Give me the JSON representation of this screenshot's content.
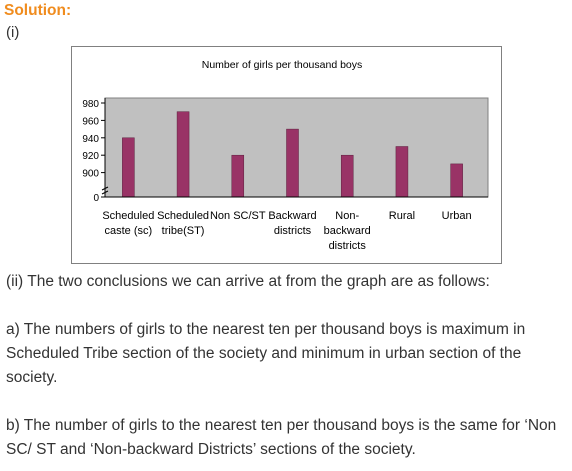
{
  "header": {
    "title": "Solution:"
  },
  "part_one": {
    "label": "(i)"
  },
  "chart_data": {
    "type": "bar",
    "title": "Number of girls per thousand boys",
    "categories": [
      [
        "Scheduled",
        "caste (sc)"
      ],
      [
        "Scheduled",
        "tribe(ST)"
      ],
      [
        "Non SC/ST"
      ],
      [
        "Backward",
        "districts"
      ],
      [
        "Non-",
        "backward",
        "districts"
      ],
      [
        "Rural"
      ],
      [
        "Urban"
      ]
    ],
    "values": [
      940,
      970,
      920,
      950,
      920,
      930,
      910
    ],
    "yticks": [
      "980",
      "960",
      "940",
      "920",
      "900",
      "0"
    ],
    "ylim": [
      880,
      980
    ],
    "axis_break": true,
    "grid": false,
    "legend": "none",
    "colors": {
      "bar": "#993366",
      "plot_bg": "#c0c0c0"
    }
  },
  "text": {
    "conclusion_intro": "(ii) The two conclusions we can arrive at from the graph are as follows:",
    "conclusion_a": "a) The numbers of girls to the nearest ten per thousand boys is maximum in Scheduled Tribe section of the society and minimum in urban section of the society.",
    "conclusion_b": "b) The number of girls to the nearest ten per thousand boys is the same for ‘Non SC/ ST and ‘Non-backward Districts’ sections of the society."
  }
}
